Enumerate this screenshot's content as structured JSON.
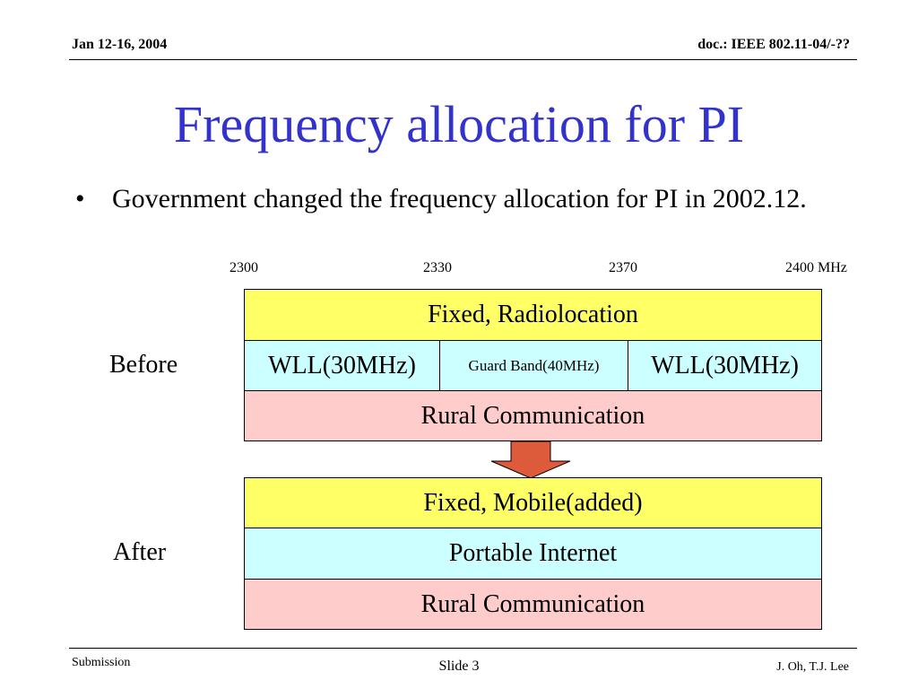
{
  "header": {
    "date": "Jan 12-16, 2004",
    "doc": "doc.: IEEE 802.11-04/-??"
  },
  "title": "Frequency allocation for PI",
  "bullets": [
    {
      "marker": "•",
      "text": "Government changed the frequency allocation for PI in 2002.12."
    }
  ],
  "diagram": {
    "ticks": [
      "2300",
      "2330",
      "2370",
      "2400 MHz"
    ],
    "before": {
      "label": "Before",
      "row1": "Fixed, Radiolocation",
      "row2": [
        "WLL(30MHz)",
        "Guard Band(40MHz)",
        "WLL(30MHz)"
      ],
      "row3": "Rural Communication"
    },
    "after": {
      "label": "After",
      "row1": "Fixed, Mobile(added)",
      "row2": "Portable Internet",
      "row3": "Rural Communication"
    },
    "colors": {
      "yellow": "#FFFF66",
      "cyan": "#CCFFFF",
      "pink": "#FFCCCC",
      "arrow": "#DD5A3A",
      "title": "#3333CC"
    }
  },
  "footer": {
    "left": "Submission",
    "center": "Slide 3",
    "right": "J. Oh, T.J. Lee"
  }
}
